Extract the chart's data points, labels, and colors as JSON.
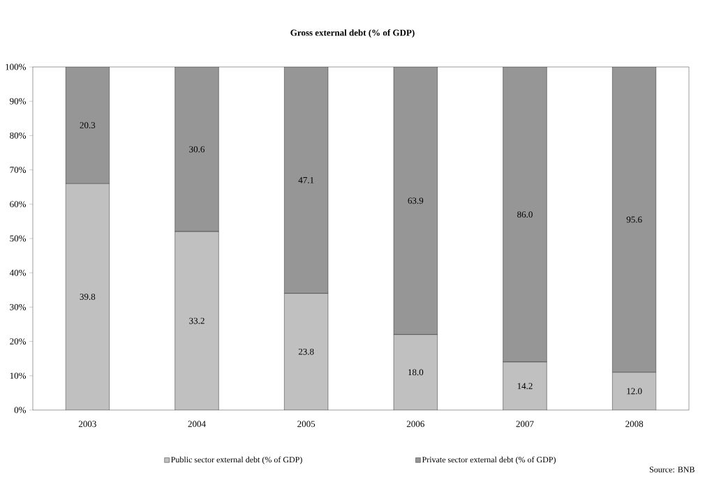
{
  "chart_data": {
    "type": "bar",
    "title": "**Gross external debt (% of GDP)**",
    "categories": [
      "2003",
      "2004",
      "2005",
      "2006",
      "2007",
      "2008"
    ],
    "stacked": true,
    "series": [
      {
        "name": "Public sector external debt (% of GDP)",
        "color": "#c0c0c0",
        "values": [
          66,
          52,
          34,
          22,
          14,
          11
        ]
      },
      {
        "name": "Private sector external debt (% of GDP)",
        "color": "#969696",
        "values": [
          34,
          48,
          66,
          78,
          86,
          89
        ]
      }
    ],
    "ylim": [
      0,
      100
    ],
    "yticks": [
      {
        "value": 0,
        "label": "0%"
      },
      {
        "value": 10,
        "label": "10%"
      },
      {
        "value": 20,
        "label": "20%"
      },
      {
        "value": 30,
        "label": "30%"
      },
      {
        "value": 40,
        "label": "40%"
      },
      {
        "value": 50,
        "label": "50%"
      },
      {
        "value": 60,
        "label": "60%"
      },
      {
        "value": 70,
        "label": "70%"
      },
      {
        "value": 80,
        "label": "80%"
      },
      {
        "value": 90,
        "label": "90%"
      },
      {
        "value": 100,
        "label": "100%"
      }
    ],
    "legend": "bottom",
    "annotations": [
      "39.8",
      "33.2",
      "23.8",
      "18.0",
      "14.2",
      "12.0",
      "20.3",
      "30.6",
      "47.1",
      "63.9",
      "86.0",
      "95.6",
      "Source: BNB"
    ]
  }
}
